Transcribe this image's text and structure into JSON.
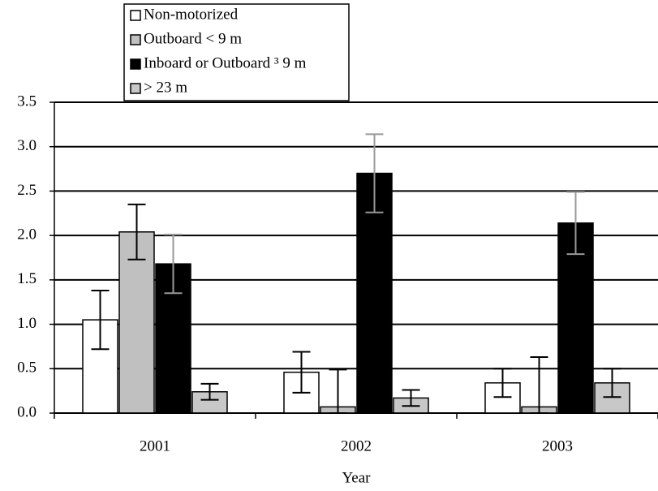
{
  "chart_data": {
    "type": "bar",
    "x_label": "Year",
    "categories": [
      "2001",
      "2002",
      "2003"
    ],
    "series": [
      {
        "name": "Non-motorized",
        "color": "#ffffff",
        "error_color": "#000000",
        "values": [
          1.05,
          0.46,
          0.34
        ],
        "errors": [
          0.33,
          0.23,
          0.16
        ]
      },
      {
        "name": "Outboard < 9 m",
        "color": "#c0c0c0",
        "error_color": "#000000",
        "values": [
          2.04,
          0.07,
          0.07
        ],
        "errors": [
          0.31,
          0.42,
          0.56
        ]
      },
      {
        "name": "Inboard or Outboard ³ 9 m",
        "color": "#000000",
        "error_color": "#999999",
        "values": [
          1.68,
          2.7,
          2.14
        ],
        "errors": [
          0.33,
          0.44,
          0.35
        ]
      },
      {
        "name": "> 23 m",
        "color": "#c8c8c8",
        "error_color": "#000000",
        "values": [
          0.24,
          0.17,
          0.34
        ],
        "errors": [
          0.09,
          0.09,
          0.16
        ]
      }
    ],
    "ylim": [
      0,
      3.5
    ],
    "yticks": [
      {
        "value": 0,
        "label": "0.0"
      },
      0.5,
      {
        "value": 1,
        "label": "1.0"
      },
      1.5,
      {
        "value": 2,
        "label": "2.0"
      },
      2.5,
      {
        "value": 3,
        "label": "3.0"
      },
      3.5
    ],
    "grid": true
  }
}
